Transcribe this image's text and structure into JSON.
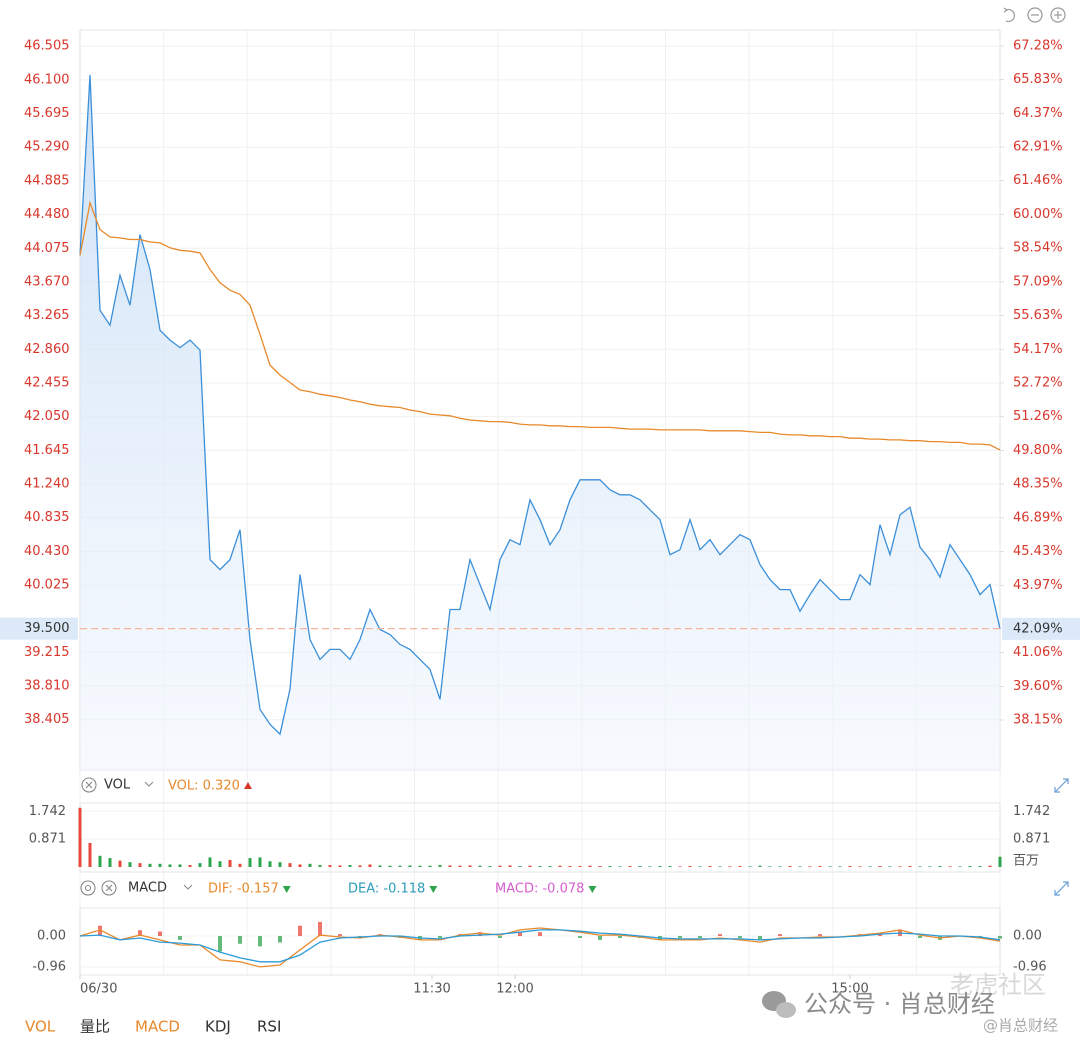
{
  "chart_data": [
    {
      "type": "line",
      "xlim": [
        0,
        92
      ],
      "xticks": [
        {
          "value": 0,
          "label": "06/30"
        },
        {
          "value": 35.2,
          "label": "11:30"
        },
        {
          "value": 43.5,
          "label": "12:00"
        },
        {
          "value": 77,
          "label": "15:00"
        }
      ],
      "ylim": [
        37.8,
        46.7
      ],
      "yticks": [
        46.505,
        {
          "value": 46.1,
          "label": "46.100"
        },
        45.695,
        {
          "value": 45.29,
          "label": "45.290"
        },
        44.885,
        {
          "value": 44.48,
          "label": "44.480"
        },
        44.075,
        {
          "value": 43.67,
          "label": "43.670"
        },
        43.265,
        {
          "value": 42.86,
          "label": "42.860"
        },
        42.455,
        {
          "value": 42.05,
          "label": "42.050"
        },
        41.645,
        {
          "value": 41.24,
          "label": "41.240"
        },
        40.835,
        {
          "value": 40.43,
          "label": "40.430"
        },
        40.025,
        39.215,
        {
          "value": 38.81,
          "label": "38.810"
        },
        38.405
      ],
      "y2lim": [
        35.99,
        67.97
      ],
      "y2ticks": [
        {
          "value": 67.28,
          "label": "67.28%"
        },
        {
          "value": 65.83,
          "label": "65.83%"
        },
        {
          "value": 64.37,
          "label": "64.37%"
        },
        {
          "value": 62.91,
          "label": "62.91%"
        },
        {
          "value": 61.46,
          "label": "61.46%"
        },
        {
          "value": 60.0,
          "label": "60.00%"
        },
        {
          "value": 58.54,
          "label": "58.54%"
        },
        {
          "value": 57.09,
          "label": "57.09%"
        },
        {
          "value": 55.63,
          "label": "55.63%"
        },
        {
          "value": 54.17,
          "label": "54.17%"
        },
        {
          "value": 52.72,
          "label": "52.72%"
        },
        {
          "value": 51.26,
          "label": "51.26%"
        },
        {
          "value": 49.8,
          "label": "49.80%"
        },
        {
          "value": 48.35,
          "label": "48.35%"
        },
        {
          "value": 46.89,
          "label": "46.89%"
        },
        {
          "value": 45.43,
          "label": "45.43%"
        },
        {
          "value": 43.97,
          "label": "43.97%"
        },
        {
          "value": 41.06,
          "label": "41.06%"
        },
        {
          "value": 39.6,
          "label": "39.60%"
        },
        {
          "value": 38.15,
          "label": "38.15%"
        }
      ],
      "current": {
        "value": 39.5,
        "label": "39.500"
      },
      "current_y2": {
        "value": 42.09,
        "label": "42.09%"
      },
      "grid": true,
      "series": [
        {
          "color": "#3b8fd9",
          "area": true,
          "values": [
            43.99,
            46.16,
            43.33,
            43.15,
            43.75,
            43.39,
            44.24,
            43.82,
            43.09,
            42.97,
            42.88,
            42.97,
            42.85,
            40.33,
            40.21,
            40.33,
            40.69,
            39.37,
            38.53,
            38.35,
            38.23,
            38.77,
            40.15,
            39.37,
            39.13,
            39.25,
            39.25,
            39.13,
            39.37,
            39.73,
            39.49,
            39.43,
            39.31,
            39.25,
            39.13,
            39.01,
            38.65,
            39.73,
            39.73,
            40.33,
            40.03,
            39.73,
            40.33,
            40.57,
            40.51,
            41.05,
            40.81,
            40.51,
            40.69,
            41.05,
            41.29,
            41.29,
            41.29,
            41.17,
            41.11,
            41.11,
            41.05,
            40.93,
            40.81,
            40.39,
            40.45,
            40.81,
            40.45,
            40.57,
            40.39,
            40.51,
            40.63,
            40.57,
            40.27,
            40.09,
            39.97,
            39.97,
            39.71,
            39.91,
            40.09,
            39.97,
            39.85,
            39.85,
            40.15,
            40.03,
            40.75,
            40.39,
            40.87,
            40.96,
            40.48,
            40.33,
            40.12,
            40.51,
            40.33,
            40.15,
            39.91,
            40.03,
            39.5
          ]
        },
        {
          "color": "#e8892b",
          "area": false,
          "values": [
            43.99,
            44.62,
            44.3,
            44.21,
            44.2,
            44.18,
            44.18,
            44.15,
            44.14,
            44.08,
            44.05,
            44.04,
            44.02,
            43.82,
            43.66,
            43.57,
            43.52,
            43.39,
            43.04,
            42.67,
            42.55,
            42.46,
            42.37,
            42.35,
            42.32,
            42.3,
            42.28,
            42.25,
            42.23,
            42.2,
            42.18,
            42.17,
            42.16,
            42.13,
            42.11,
            42.08,
            42.07,
            42.06,
            42.03,
            42.01,
            42.0,
            41.99,
            41.99,
            41.98,
            41.96,
            41.95,
            41.95,
            41.94,
            41.94,
            41.93,
            41.93,
            41.92,
            41.92,
            41.92,
            41.91,
            41.9,
            41.9,
            41.9,
            41.89,
            41.89,
            41.89,
            41.89,
            41.89,
            41.88,
            41.88,
            41.88,
            41.88,
            41.87,
            41.86,
            41.86,
            41.84,
            41.83,
            41.83,
            41.82,
            41.82,
            41.81,
            41.81,
            41.79,
            41.79,
            41.78,
            41.78,
            41.77,
            41.77,
            41.76,
            41.76,
            41.75,
            41.75,
            41.74,
            41.74,
            41.72,
            41.72,
            41.71,
            41.65
          ]
        }
      ]
    },
    {
      "type": "bar",
      "indicator": "VOL",
      "readout": "VOL: 0.320",
      "unit": "百万",
      "xlim": [
        0,
        92
      ],
      "ylim": [
        0,
        2
      ],
      "yticks": [
        1.742,
        0.871
      ],
      "up_color": "#e8483b",
      "down_color": "#2ea44f",
      "values": [
        1.85,
        0.75,
        0.35,
        0.28,
        0.2,
        0.15,
        0.12,
        0.1,
        0.1,
        0.08,
        0.08,
        0.06,
        0.12,
        0.3,
        0.18,
        0.22,
        0.1,
        0.28,
        0.3,
        0.18,
        0.15,
        0.12,
        0.08,
        0.1,
        0.06,
        0.06,
        0.05,
        0.06,
        0.05,
        0.08,
        0.05,
        0.04,
        0.04,
        0.05,
        0.04,
        0.04,
        0.06,
        0.05,
        0.04,
        0.05,
        0.04,
        0.03,
        0.04,
        0.05,
        0.03,
        0.04,
        0.03,
        0.03,
        0.04,
        0.03,
        0.03,
        0.04,
        0.03,
        0.03,
        0.02,
        0.03,
        0.03,
        0.02,
        0.03,
        0.03,
        0.02,
        0.03,
        0.02,
        0.03,
        0.02,
        0.02,
        0.03,
        0.02,
        0.04,
        0.02,
        0.02,
        0.03,
        0.02,
        0.02,
        0.03,
        0.02,
        0.02,
        0.03,
        0.02,
        0.02,
        0.03,
        0.02,
        0.02,
        0.03,
        0.02,
        0.02,
        0.03,
        0.02,
        0.02,
        0.03,
        0.03,
        0.04,
        0.32
      ]
    },
    {
      "type": "macd",
      "indicator": "MACD",
      "readouts": [
        {
          "text": "DIF: -0.157",
          "color": "#e8892b"
        },
        {
          "text": "DEA: -0.118",
          "color": "#2a9bb8"
        },
        {
          "text": "MACD: -0.078",
          "color": "#d65fd0"
        }
      ],
      "xlim": [
        0,
        46
      ],
      "ylim": [
        -1.21,
        0.87
      ],
      "yticks": [
        {
          "value": 0,
          "label": "0.00"
        },
        -0.96
      ],
      "up_color": "#e8483b",
      "down_color": "#2ea44f",
      "series": [
        {
          "color": "#e8892b",
          "values": [
            0,
            0.19,
            -0.12,
            0.03,
            -0.12,
            -0.28,
            -0.28,
            -0.74,
            -0.8,
            -0.96,
            -0.9,
            -0.43,
            0.03,
            -0.03,
            -0.06,
            0.03,
            -0.03,
            -0.12,
            -0.12,
            0.03,
            0.09,
            0.03,
            0.19,
            0.25,
            0.19,
            0.12,
            0.03,
            0.03,
            -0.03,
            -0.12,
            -0.12,
            -0.12,
            -0.06,
            -0.12,
            -0.19,
            -0.06,
            -0.06,
            -0.03,
            -0.03,
            0.03,
            0.09,
            0.19,
            0.03,
            -0.06,
            0,
            -0.06,
            -0.157
          ]
        },
        {
          "color": "#2a9bd8",
          "values": [
            0,
            0.03,
            -0.12,
            -0.06,
            -0.19,
            -0.22,
            -0.28,
            -0.5,
            -0.68,
            -0.8,
            -0.8,
            -0.59,
            -0.19,
            -0.06,
            -0.03,
            0,
            0,
            -0.06,
            -0.09,
            0,
            0.03,
            0.06,
            0.12,
            0.19,
            0.19,
            0.15,
            0.09,
            0.06,
            0,
            -0.06,
            -0.09,
            -0.09,
            -0.09,
            -0.09,
            -0.12,
            -0.09,
            -0.06,
            -0.06,
            -0.03,
            0,
            0.06,
            0.09,
            0.06,
            0,
            0,
            -0.03,
            -0.118
          ]
        }
      ],
      "histogram": [
        0,
        0.32,
        0,
        0.18,
        0.14,
        -0.12,
        0,
        -0.48,
        -0.24,
        -0.32,
        -0.2,
        0.32,
        0.44,
        0.06,
        -0.06,
        0.06,
        -0.06,
        -0.12,
        -0.06,
        0.06,
        0.12,
        -0.06,
        0.14,
        0.12,
        0,
        -0.06,
        -0.12,
        -0.06,
        -0.06,
        -0.12,
        -0.06,
        -0.06,
        0.06,
        -0.06,
        -0.14,
        0.06,
        0,
        0.06,
        0,
        0.06,
        0.06,
        0.2,
        -0.06,
        -0.12,
        0,
        -0.06,
        -0.078
      ]
    }
  ],
  "tabs": {
    "items": [
      "VOL",
      "量比",
      "MACD",
      "KDJ",
      "RSI"
    ],
    "active": [
      0,
      2
    ]
  },
  "watermark": {
    "community": "老虎社区",
    "account": "公众号 · 肖总财经",
    "handle": "@肖总财经"
  }
}
